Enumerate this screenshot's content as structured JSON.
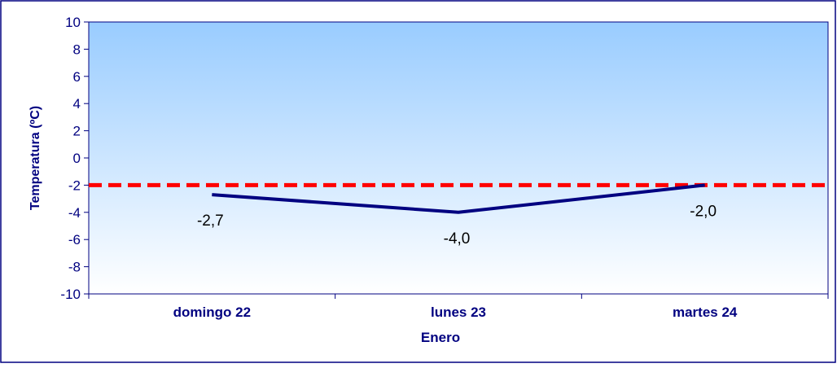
{
  "chart_data": {
    "type": "line",
    "categories": [
      "domingo 22",
      "lunes 23",
      "martes 24"
    ],
    "series": [
      {
        "values": [
          -2.7,
          -4.0,
          -2.0
        ],
        "color": "#000080",
        "labels": [
          "-2,7",
          "-4,0",
          "-2,0"
        ]
      }
    ],
    "reference_line": {
      "value": -2.0,
      "color": "#ff0000",
      "style": "dashed"
    },
    "xlabel": "Enero",
    "ylabel": "Temperatura (ºC)",
    "ylim": [
      -10,
      10
    ],
    "yticks": [
      -10,
      -8,
      -6,
      -4,
      -2,
      0,
      2,
      4,
      6,
      8,
      10
    ],
    "ytick_labels": [
      "-10",
      "-8",
      "-6",
      "-4",
      "-2",
      "0",
      "2",
      "4",
      "6",
      "8",
      "10"
    ],
    "grid": false,
    "legend": "none",
    "colors": {
      "plot_top": "#99ccff",
      "plot_bottom": "#ffffff",
      "frame": "#000080",
      "axis_text": "#000080",
      "data_label_text": "#000000"
    }
  }
}
